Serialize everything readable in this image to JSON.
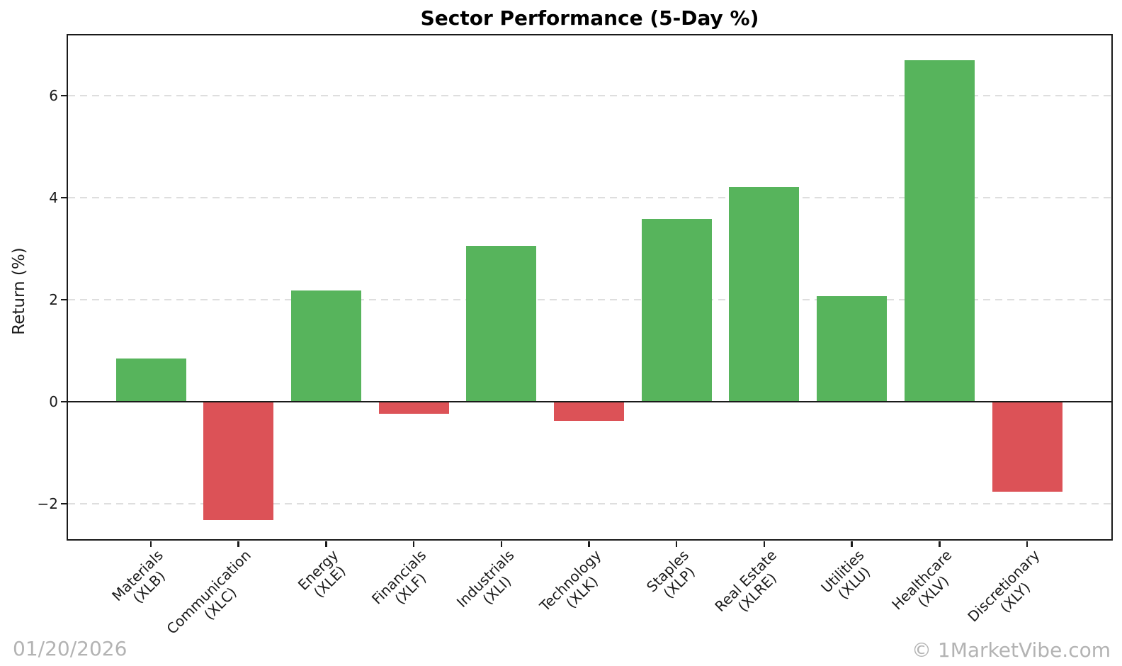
{
  "footer": {
    "date": "01/20/2026",
    "credit": "© 1MarketVibe.com"
  },
  "chart_data": {
    "type": "bar",
    "title": "Sector Performance (5-Day %)",
    "xlabel": "",
    "ylabel": "Return (%)",
    "categories": [
      {
        "sector": "Materials",
        "ticker": "(XLB)"
      },
      {
        "sector": "Communication",
        "ticker": "(XLC)"
      },
      {
        "sector": "Energy",
        "ticker": "(XLE)"
      },
      {
        "sector": "Financials",
        "ticker": "(XLF)"
      },
      {
        "sector": "Industrials",
        "ticker": "(XLI)"
      },
      {
        "sector": "Technology",
        "ticker": "(XLK)"
      },
      {
        "sector": "Staples",
        "ticker": "(XLP)"
      },
      {
        "sector": "Real Estate",
        "ticker": "(XLRE)"
      },
      {
        "sector": "Utilities",
        "ticker": "(XLU)"
      },
      {
        "sector": "Healthcare",
        "ticker": "(XLV)"
      },
      {
        "sector": "Discretionary",
        "ticker": "(XLY)"
      }
    ],
    "values": [
      0.85,
      -2.32,
      2.18,
      -0.23,
      3.06,
      -0.37,
      3.58,
      4.21,
      2.07,
      6.7,
      -1.77
    ],
    "yticks": [
      -2,
      0,
      2,
      4,
      6
    ],
    "ytick_labels": [
      "−2",
      "0",
      "2",
      "4",
      "6"
    ],
    "gridlines": [
      -2,
      2,
      4,
      6
    ],
    "ylim": [
      -2.72,
      7.22
    ],
    "grid": "horizontal dashed, light gray",
    "legend": "none",
    "zero_line": "solid black horizontal line at 0",
    "colors": {
      "positive": "#57b45c",
      "negative": "#dc5257",
      "gridline": "#dedede",
      "axis": "#1a1a1a",
      "watermark": "#b3b3b3"
    }
  }
}
